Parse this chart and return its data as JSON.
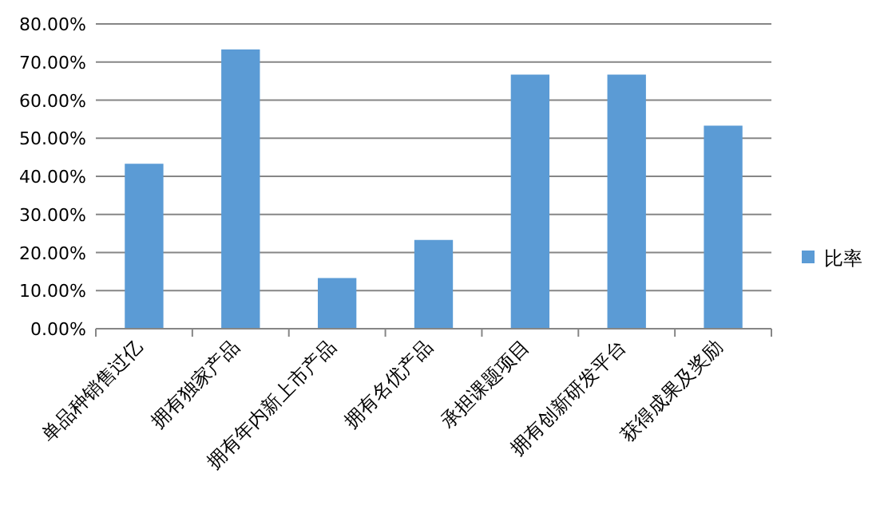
{
  "chart_data": {
    "type": "bar",
    "categories": [
      "单品种销售过亿",
      "拥有独家产品",
      "拥有年内新上市产品",
      "拥有名优产品",
      "承担课题项目",
      "拥有创新研发平台",
      "获得成果及奖励"
    ],
    "series": [
      {
        "name": "比率",
        "color": "#5b9bd5",
        "values": [
          43.3,
          73.3,
          13.3,
          23.3,
          66.7,
          66.7,
          53.3
        ]
      }
    ],
    "ylim": [
      0,
      80
    ],
    "yticks": [
      {
        "value": 0,
        "label": "0.00%"
      },
      {
        "value": 10,
        "label": "10.00%"
      },
      {
        "value": 20,
        "label": "20.00%"
      },
      {
        "value": 30,
        "label": "30.00%"
      },
      {
        "value": 40,
        "label": "40.00%"
      },
      {
        "value": 50,
        "label": "50.00%"
      },
      {
        "value": 60,
        "label": "60.00%"
      },
      {
        "value": 70,
        "label": "70.00%"
      },
      {
        "value": 80,
        "label": "80.00%"
      }
    ],
    "grid": "y",
    "legend": "right"
  }
}
